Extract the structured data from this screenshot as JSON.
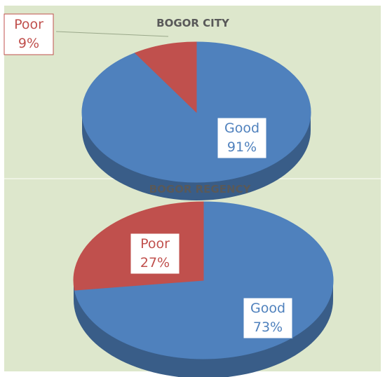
{
  "chart_data": [
    {
      "type": "pie",
      "title": "BOGOR CITY",
      "categories": [
        "Good",
        "Poor"
      ],
      "values": [
        91,
        9
      ],
      "value_labels": [
        "91%",
        "9%"
      ],
      "colors": [
        "#4f81bd",
        "#c0504d"
      ]
    },
    {
      "type": "pie",
      "title": "BOGOR REGENCY",
      "categories": [
        "Good",
        "Poor"
      ],
      "values": [
        73,
        27
      ],
      "value_labels": [
        "73%",
        "27%"
      ],
      "colors": [
        "#4f81bd",
        "#c0504d"
      ]
    }
  ]
}
